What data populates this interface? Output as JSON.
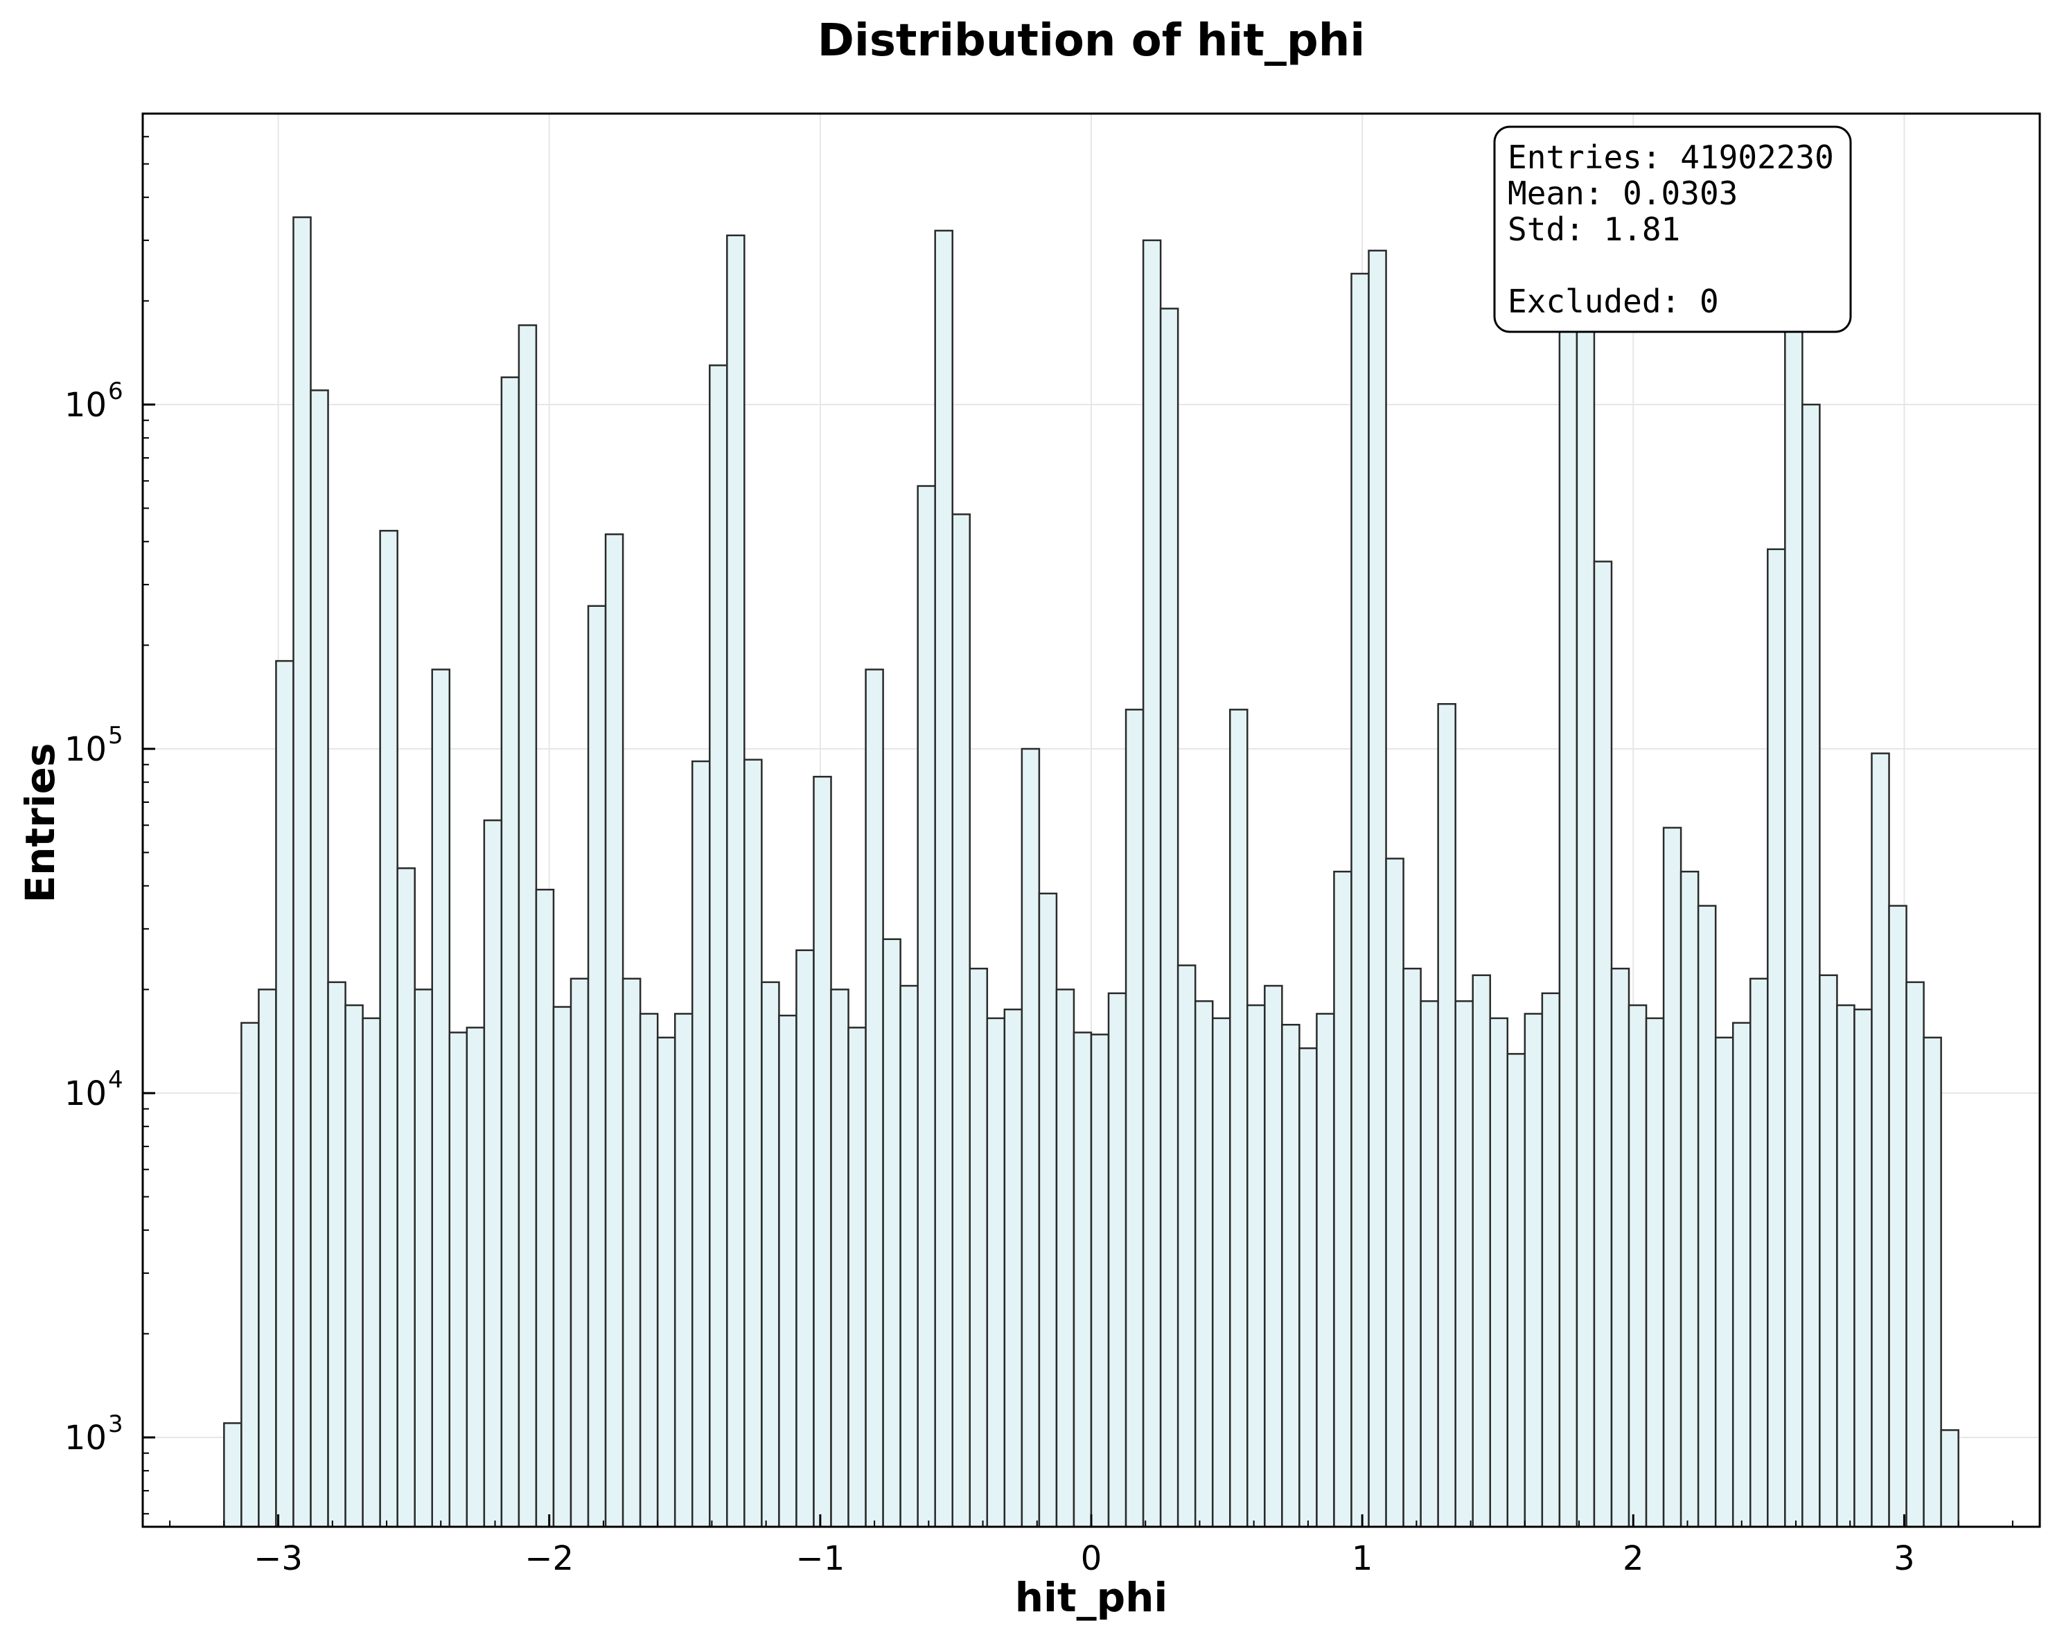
{
  "chart_data": {
    "type": "bar",
    "title": "Distribution of hit_phi",
    "xlabel": "hit_phi",
    "ylabel": "Entries",
    "yscale": "log",
    "xlim": [
      -3.5,
      3.5
    ],
    "ylim": [
      550,
      7000000
    ],
    "grid": true,
    "x_ticks": [
      -3,
      -2,
      -1,
      0,
      1,
      2,
      3
    ],
    "x_tick_labels": [
      "−3",
      "−2",
      "−1",
      "0",
      "1",
      "2",
      "3"
    ],
    "y_ticks": [
      1000,
      10000,
      100000,
      1000000
    ],
    "y_tick_labels": [
      {
        "base": "10",
        "exp": "3"
      },
      {
        "base": "10",
        "exp": "4"
      },
      {
        "base": "10",
        "exp": "5"
      },
      {
        "base": "10",
        "exp": "6"
      }
    ],
    "bin_edges": [
      -3.2,
      3.2
    ],
    "bin_count": 100,
    "values": [
      1100,
      16000,
      20000,
      180000,
      3500000,
      1100000,
      21000,
      18000,
      16500,
      430000,
      45000,
      20000,
      170000,
      15000,
      15500,
      62000,
      1200000,
      1700000,
      39000,
      17800,
      21500,
      260000,
      420000,
      21500,
      17000,
      14500,
      17000,
      92000,
      1300000,
      3100000,
      93000,
      21000,
      16800,
      26000,
      83000,
      20000,
      15500,
      170000,
      28000,
      20500,
      580000,
      3200000,
      480000,
      23000,
      16500,
      17500,
      100000,
      38000,
      20000,
      15000,
      14800,
      19500,
      130000,
      3000000,
      1900000,
      23500,
      18500,
      16500,
      130000,
      18000,
      20500,
      15800,
      13500,
      17000,
      44000,
      2400000,
      2800000,
      48000,
      23000,
      18500,
      135000,
      18500,
      22000,
      16500,
      13000,
      17000,
      19500,
      4000000,
      4000000,
      350000,
      23000,
      18000,
      16500,
      59000,
      44000,
      35000,
      14500,
      16000,
      21500,
      380000,
      3600000,
      1000000,
      22000,
      18000,
      17500,
      97000,
      35000,
      21000,
      14500,
      1050
    ],
    "stats_box": {
      "lines": [
        "Entries: 41902230",
        "Mean: 0.0303",
        "Std: 1.81",
        "",
        "Excluded: 0"
      ],
      "placement": "top-right"
    },
    "colors": {
      "bar_fill": "#e4f4f6",
      "bar_edge": "#2a2a2a",
      "grid": "#e6e6e6",
      "axis": "#000000"
    }
  }
}
